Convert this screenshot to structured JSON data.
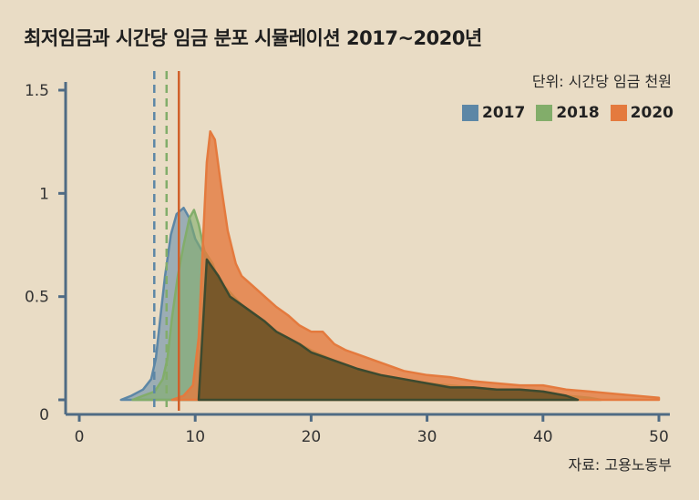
{
  "title": "최저임금과 시간당 임금 분포 시뮬레이션 2017~2020년",
  "unit_note": "단위: 시간당 임금 천원",
  "source_note": "자료: 고용노동부",
  "colors": {
    "background": "#e9dcc5",
    "axis": "#4f6b84",
    "s2017": "#5d87a6",
    "s2018": "#82ad6a",
    "s2020": "#e47a3e"
  },
  "chart_data": {
    "type": "area",
    "title": "최저임금과 시간당 임금 분포 시뮬레이션 2017~2020년",
    "xlabel": "",
    "ylabel": "",
    "xlim": [
      0,
      50
    ],
    "ylim": [
      0,
      1.5
    ],
    "x_ticks": [
      0,
      10,
      20,
      30,
      40,
      50
    ],
    "y_ticks": [
      {
        "value": 0,
        "label": "0"
      },
      {
        "value": 0.5,
        "label": "0.5"
      },
      {
        "value": 1,
        "label": "1"
      },
      {
        "value": 1.5,
        "label": "1.5"
      }
    ],
    "grid": false,
    "legend_position": "top-right",
    "series": [
      {
        "name": "2017",
        "color": "#5d87a6",
        "minimum_wage": 6.47,
        "points": [
          [
            3.6,
            0
          ],
          [
            4.5,
            0.02
          ],
          [
            5.5,
            0.05
          ],
          [
            6.2,
            0.1
          ],
          [
            6.6,
            0.2
          ],
          [
            7.0,
            0.4
          ],
          [
            7.4,
            0.6
          ],
          [
            7.9,
            0.8
          ],
          [
            8.4,
            0.9
          ],
          [
            9.0,
            0.93
          ],
          [
            9.5,
            0.88
          ],
          [
            10,
            0.78
          ],
          [
            11,
            0.68
          ],
          [
            12,
            0.6
          ],
          [
            13,
            0.5
          ],
          [
            14,
            0.46
          ],
          [
            15,
            0.42
          ],
          [
            16,
            0.38
          ],
          [
            17,
            0.33
          ],
          [
            18,
            0.3
          ],
          [
            19,
            0.27
          ],
          [
            20,
            0.23
          ],
          [
            22,
            0.19
          ],
          [
            24,
            0.15
          ],
          [
            26,
            0.12
          ],
          [
            28,
            0.1
          ],
          [
            30,
            0.08
          ],
          [
            32,
            0.06
          ],
          [
            34,
            0.06
          ],
          [
            36,
            0.05
          ],
          [
            38,
            0.05
          ],
          [
            40,
            0.04
          ],
          [
            42,
            0.02
          ],
          [
            43,
            0
          ]
        ]
      },
      {
        "name": "2018",
        "color": "#82ad6a",
        "minimum_wage": 7.53,
        "points": [
          [
            4.6,
            0
          ],
          [
            5.5,
            0.02
          ],
          [
            6.5,
            0.04
          ],
          [
            7.2,
            0.1
          ],
          [
            7.6,
            0.2
          ],
          [
            8.0,
            0.4
          ],
          [
            8.5,
            0.6
          ],
          [
            9.0,
            0.75
          ],
          [
            9.5,
            0.88
          ],
          [
            9.9,
            0.92
          ],
          [
            10.3,
            0.85
          ],
          [
            10.8,
            0.72
          ],
          [
            11.5,
            0.66
          ],
          [
            12,
            0.58
          ],
          [
            13,
            0.52
          ],
          [
            14,
            0.46
          ],
          [
            15,
            0.42
          ],
          [
            16,
            0.37
          ],
          [
            17,
            0.33
          ],
          [
            18,
            0.3
          ],
          [
            19,
            0.27
          ],
          [
            20,
            0.24
          ],
          [
            22,
            0.19
          ],
          [
            24,
            0.15
          ],
          [
            26,
            0.12
          ],
          [
            28,
            0.1
          ],
          [
            30,
            0.08
          ],
          [
            32,
            0.07
          ],
          [
            34,
            0.06
          ],
          [
            36,
            0.05
          ],
          [
            38,
            0.05
          ],
          [
            40,
            0.04
          ],
          [
            42,
            0.02
          ],
          [
            44,
            0.01
          ],
          [
            45,
            0
          ]
        ]
      },
      {
        "name": "2020",
        "color": "#e47a3e",
        "minimum_wage": 8.59,
        "points": [
          [
            8.0,
            0
          ],
          [
            9.0,
            0.02
          ],
          [
            9.8,
            0.07
          ],
          [
            10.3,
            0.3
          ],
          [
            10.7,
            0.8
          ],
          [
            11.0,
            1.15
          ],
          [
            11.3,
            1.3
          ],
          [
            11.7,
            1.26
          ],
          [
            12.2,
            1.05
          ],
          [
            12.8,
            0.82
          ],
          [
            13.5,
            0.66
          ],
          [
            14,
            0.6
          ],
          [
            15,
            0.55
          ],
          [
            16,
            0.5
          ],
          [
            17,
            0.45
          ],
          [
            18,
            0.41
          ],
          [
            19,
            0.36
          ],
          [
            20,
            0.33
          ],
          [
            21,
            0.33
          ],
          [
            22,
            0.27
          ],
          [
            23,
            0.24
          ],
          [
            24,
            0.22
          ],
          [
            26,
            0.18
          ],
          [
            28,
            0.14
          ],
          [
            30,
            0.12
          ],
          [
            32,
            0.11
          ],
          [
            34,
            0.09
          ],
          [
            36,
            0.08
          ],
          [
            38,
            0.07
          ],
          [
            40,
            0.07
          ],
          [
            42,
            0.05
          ],
          [
            44,
            0.04
          ],
          [
            46,
            0.03
          ],
          [
            48,
            0.02
          ],
          [
            50,
            0.01
          ]
        ]
      }
    ],
    "reference_lines": [
      {
        "series": "2017",
        "x": 6.47,
        "style": "dashed",
        "color": "#5d87a6"
      },
      {
        "series": "2018",
        "x": 7.53,
        "style": "dashed",
        "color": "#82ad6a"
      },
      {
        "series": "2020",
        "x": 8.59,
        "style": "solid",
        "color": "#d0602a"
      }
    ]
  },
  "legend": [
    {
      "label": "2017",
      "color": "#5d87a6"
    },
    {
      "label": "2018",
      "color": "#82ad6a"
    },
    {
      "label": "2020",
      "color": "#e47a3e"
    }
  ]
}
